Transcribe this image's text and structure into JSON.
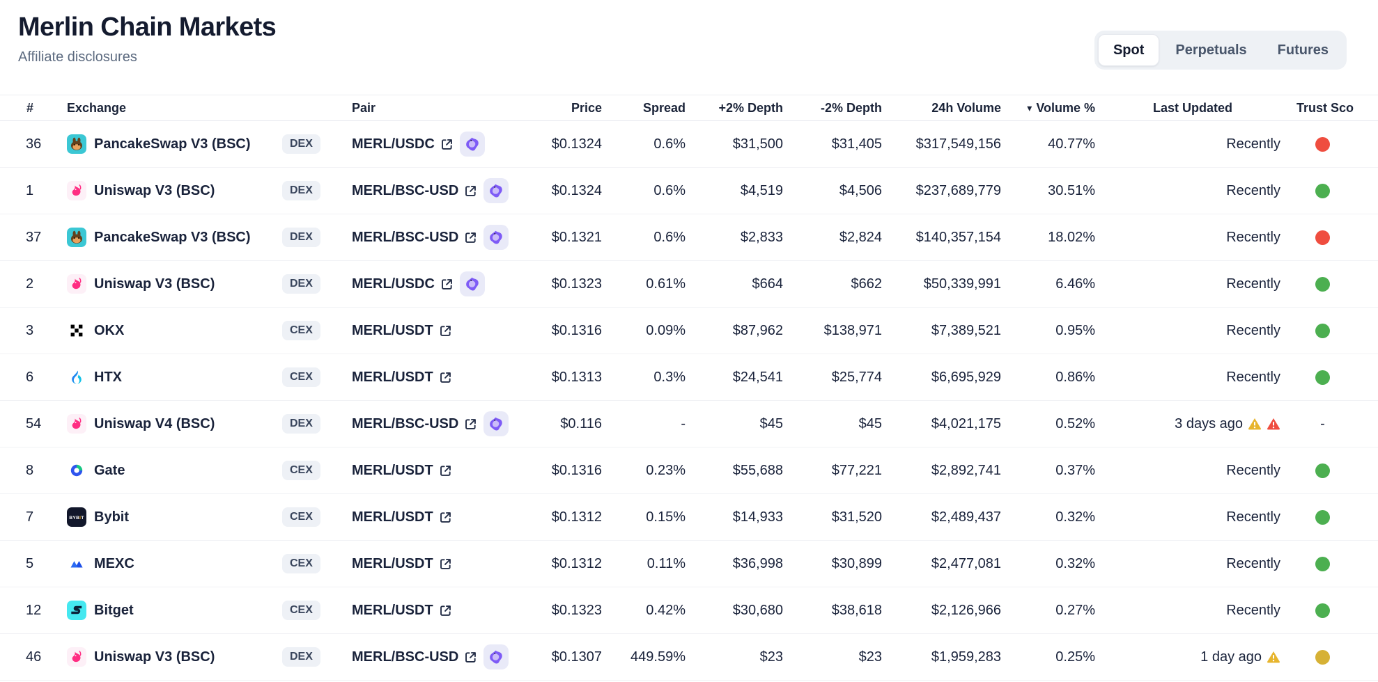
{
  "header": {
    "title": "Merlin Chain Markets",
    "subtitle": "Affiliate disclosures"
  },
  "tabs": {
    "items": [
      {
        "label": "Spot",
        "active": true
      },
      {
        "label": "Perpetuals",
        "active": false
      },
      {
        "label": "Futures",
        "active": false
      }
    ]
  },
  "table": {
    "columns": {
      "rank": "#",
      "exchange": "Exchange",
      "pair": "Pair",
      "price": "Price",
      "spread": "Spread",
      "depth_plus": "+2% Depth",
      "depth_minus": "-2% Depth",
      "volume": "24h Volume",
      "volume_pct": "Volume %",
      "last_updated": "Last Updated",
      "trust": "Trust Sco"
    },
    "sort": {
      "column": "volume_pct",
      "direction": "desc",
      "icon": "▾"
    },
    "rows": [
      {
        "rank": "36",
        "exchange": "PancakeSwap V3 (BSC)",
        "exchange_icon": "pancakeswap-icon",
        "type": "DEX",
        "pair": "MERL/USDC",
        "merlin_badge": true,
        "price": "$0.1324",
        "spread": "0.6%",
        "depth_plus": "$31,500",
        "depth_minus": "$31,405",
        "volume": "$317,549,156",
        "volume_pct": "40.77%",
        "last_updated": "Recently",
        "warnings": [],
        "trust": "red"
      },
      {
        "rank": "1",
        "exchange": "Uniswap V3 (BSC)",
        "exchange_icon": "uniswap-icon",
        "type": "DEX",
        "pair": "MERL/BSC-USD",
        "merlin_badge": true,
        "price": "$0.1324",
        "spread": "0.6%",
        "depth_plus": "$4,519",
        "depth_minus": "$4,506",
        "volume": "$237,689,779",
        "volume_pct": "30.51%",
        "last_updated": "Recently",
        "warnings": [],
        "trust": "green"
      },
      {
        "rank": "37",
        "exchange": "PancakeSwap V3 (BSC)",
        "exchange_icon": "pancakeswap-icon",
        "type": "DEX",
        "pair": "MERL/BSC-USD",
        "merlin_badge": true,
        "price": "$0.1321",
        "spread": "0.6%",
        "depth_plus": "$2,833",
        "depth_minus": "$2,824",
        "volume": "$140,357,154",
        "volume_pct": "18.02%",
        "last_updated": "Recently",
        "warnings": [],
        "trust": "red"
      },
      {
        "rank": "2",
        "exchange": "Uniswap V3 (BSC)",
        "exchange_icon": "uniswap-icon",
        "type": "DEX",
        "pair": "MERL/USDC",
        "merlin_badge": true,
        "price": "$0.1323",
        "spread": "0.61%",
        "depth_plus": "$664",
        "depth_minus": "$662",
        "volume": "$50,339,991",
        "volume_pct": "6.46%",
        "last_updated": "Recently",
        "warnings": [],
        "trust": "green"
      },
      {
        "rank": "3",
        "exchange": "OKX",
        "exchange_icon": "okx-icon",
        "type": "CEX",
        "pair": "MERL/USDT",
        "merlin_badge": false,
        "price": "$0.1316",
        "spread": "0.09%",
        "depth_plus": "$87,962",
        "depth_minus": "$138,971",
        "volume": "$7,389,521",
        "volume_pct": "0.95%",
        "last_updated": "Recently",
        "warnings": [],
        "trust": "green"
      },
      {
        "rank": "6",
        "exchange": "HTX",
        "exchange_icon": "htx-icon",
        "type": "CEX",
        "pair": "MERL/USDT",
        "merlin_badge": false,
        "price": "$0.1313",
        "spread": "0.3%",
        "depth_plus": "$24,541",
        "depth_minus": "$25,774",
        "volume": "$6,695,929",
        "volume_pct": "0.86%",
        "last_updated": "Recently",
        "warnings": [],
        "trust": "green"
      },
      {
        "rank": "54",
        "exchange": "Uniswap V4 (BSC)",
        "exchange_icon": "uniswap-icon",
        "type": "DEX",
        "pair": "MERL/BSC-USD",
        "merlin_badge": true,
        "price": "$0.116",
        "spread": "-",
        "depth_plus": "$45",
        "depth_minus": "$45",
        "volume": "$4,021,175",
        "volume_pct": "0.52%",
        "last_updated": "3 days ago",
        "warnings": [
          "yellow",
          "red"
        ],
        "trust": "-"
      },
      {
        "rank": "8",
        "exchange": "Gate",
        "exchange_icon": "gate-icon",
        "type": "CEX",
        "pair": "MERL/USDT",
        "merlin_badge": false,
        "price": "$0.1316",
        "spread": "0.23%",
        "depth_plus": "$55,688",
        "depth_minus": "$77,221",
        "volume": "$2,892,741",
        "volume_pct": "0.37%",
        "last_updated": "Recently",
        "warnings": [],
        "trust": "green"
      },
      {
        "rank": "7",
        "exchange": "Bybit",
        "exchange_icon": "bybit-icon",
        "type": "CEX",
        "pair": "MERL/USDT",
        "merlin_badge": false,
        "price": "$0.1312",
        "spread": "0.15%",
        "depth_plus": "$14,933",
        "depth_minus": "$31,520",
        "volume": "$2,489,437",
        "volume_pct": "0.32%",
        "last_updated": "Recently",
        "warnings": [],
        "trust": "green"
      },
      {
        "rank": "5",
        "exchange": "MEXC",
        "exchange_icon": "mexc-icon",
        "type": "CEX",
        "pair": "MERL/USDT",
        "merlin_badge": false,
        "price": "$0.1312",
        "spread": "0.11%",
        "depth_plus": "$36,998",
        "depth_minus": "$30,899",
        "volume": "$2,477,081",
        "volume_pct": "0.32%",
        "last_updated": "Recently",
        "warnings": [],
        "trust": "green"
      },
      {
        "rank": "12",
        "exchange": "Bitget",
        "exchange_icon": "bitget-icon",
        "type": "CEX",
        "pair": "MERL/USDT",
        "merlin_badge": false,
        "price": "$0.1323",
        "spread": "0.42%",
        "depth_plus": "$30,680",
        "depth_minus": "$38,618",
        "volume": "$2,126,966",
        "volume_pct": "0.27%",
        "last_updated": "Recently",
        "warnings": [],
        "trust": "green"
      },
      {
        "rank": "46",
        "exchange": "Uniswap V3 (BSC)",
        "exchange_icon": "uniswap-icon",
        "type": "DEX",
        "pair": "MERL/BSC-USD",
        "merlin_badge": true,
        "price": "$0.1307",
        "spread": "449.59%",
        "depth_plus": "$23",
        "depth_minus": "$23",
        "volume": "$1,959,283",
        "volume_pct": "0.25%",
        "last_updated": "1 day ago",
        "warnings": [
          "yellow"
        ],
        "trust": "yellow"
      }
    ]
  },
  "colors": {
    "trust_green": "#4caf50",
    "trust_red": "#ef4d3f",
    "trust_yellow": "#d6b135",
    "warning_yellow": "#e7b52e",
    "warning_red": "#ef4d3f",
    "accent_purple": "#7e5bf6",
    "badge_bg": "#eef1f6"
  }
}
